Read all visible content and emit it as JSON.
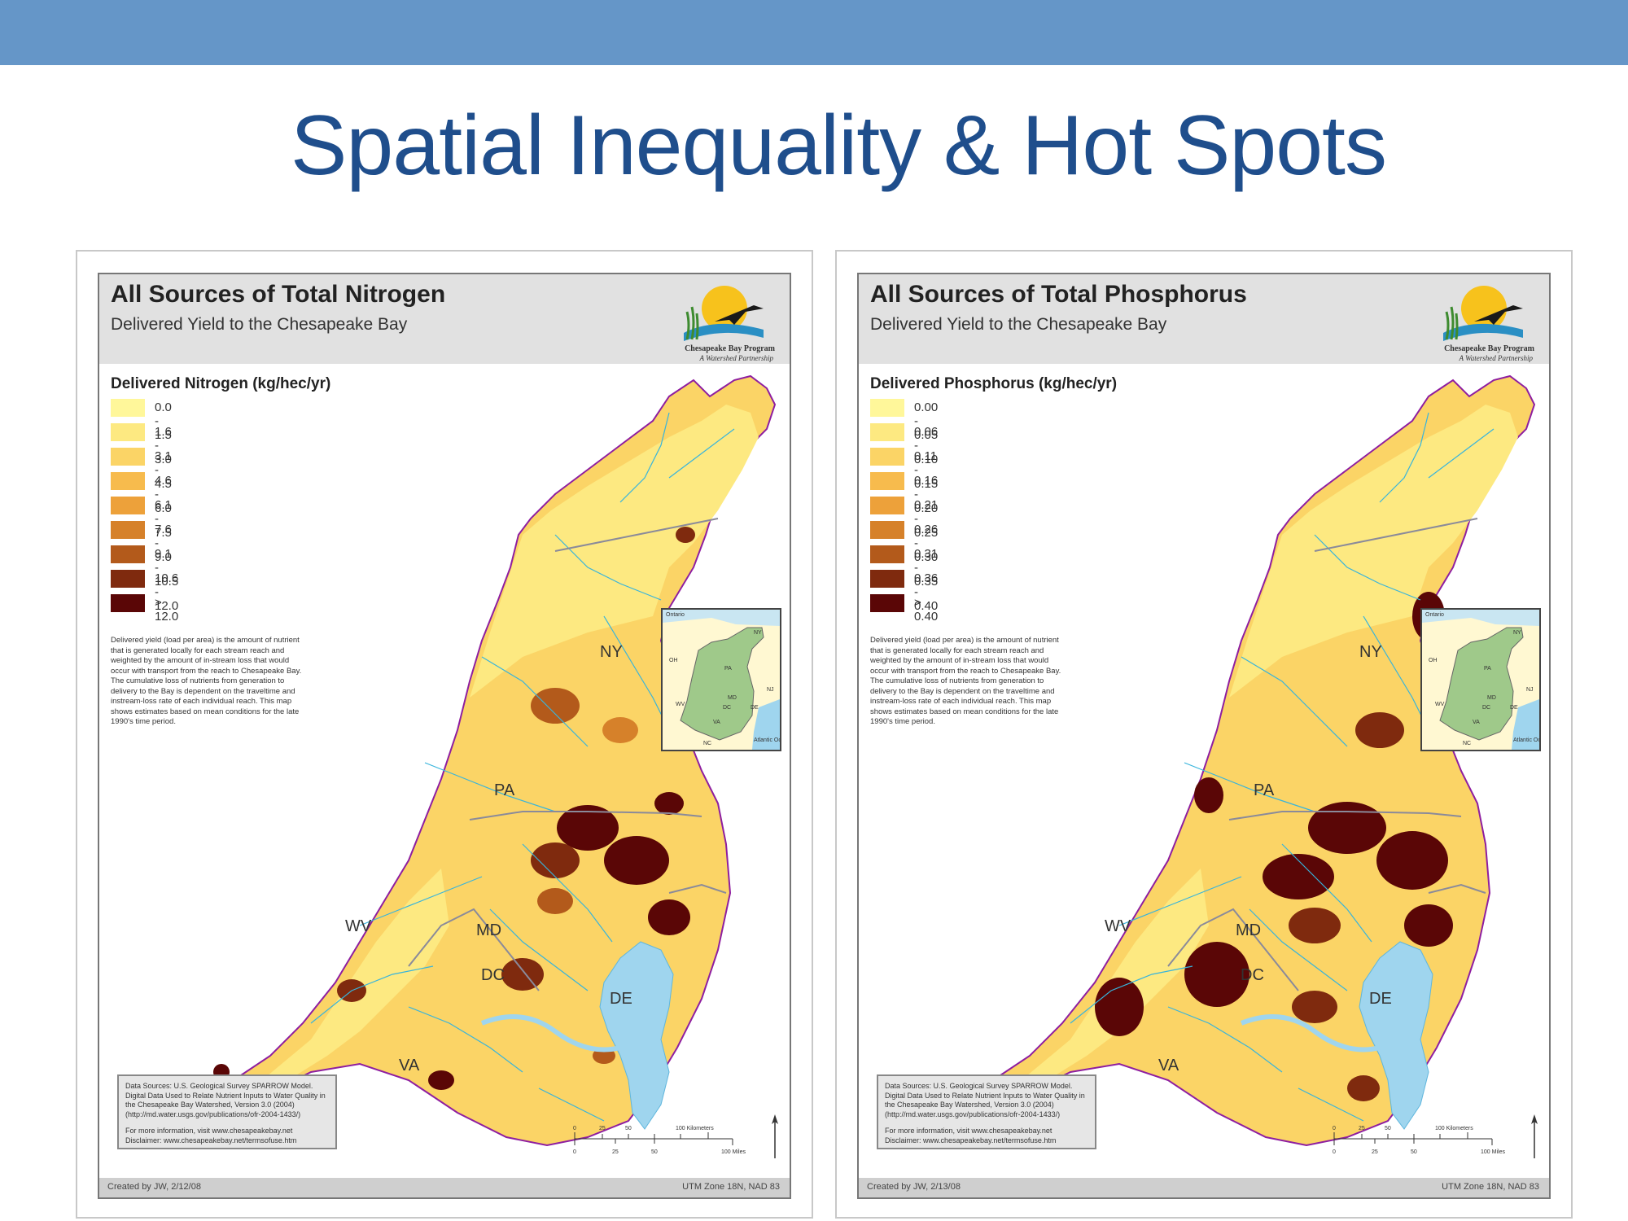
{
  "slide": {
    "title": "Spatial Inequality & Hot Spots",
    "accent_color": "#6596c8",
    "title_color": "#1f4e8c"
  },
  "maps": [
    {
      "title": "All Sources of Total Nitrogen",
      "subtitle": "Delivered Yield to the Chesapeake Bay",
      "logo": {
        "name": "Chesapeake Bay Program",
        "tagline": "A Watershed Partnership"
      },
      "legend_title": "Delivered Nitrogen (kg/hec/yr)",
      "legend": [
        {
          "label": "0.0 - 1.5",
          "color": "#fff79a"
        },
        {
          "label": "1.6 - 3.0",
          "color": "#fde981"
        },
        {
          "label": "3.1 - 4.5",
          "color": "#fbd466"
        },
        {
          "label": "4.6 - 6.0",
          "color": "#f7bb4d"
        },
        {
          "label": "6.1 - 7.5",
          "color": "#eda13a"
        },
        {
          "label": "7.6 - 9.0",
          "color": "#d6812a"
        },
        {
          "label": "9.1 - 10.5",
          "color": "#b35a1b"
        },
        {
          "label": "10.6 - 12.0",
          "color": "#7f2a0e"
        },
        {
          "label": "> 12.0",
          "color": "#5a0606"
        }
      ],
      "description": "Delivered yield (load per area) is the amount of nutrient that is generated locally for each stream reach and weighted by the amount of in-stream loss that would occur with transport from the reach to Chesapeake Bay. The cumulative loss of nutrients from generation to delivery to the Bay is dependent on the traveltime and instream-loss rate of each individual reach. This map shows estimates based on mean conditions for the late 1990's time period.",
      "sources": "Data Sources: U.S. Geological Survey SPARROW Model. Digital Data Used to Relate Nutrient Inputs to Water Quality in the Chesapeake Bay Watershed, Version 3.0 (2004) (http://md.water.usgs.gov/publications/ofr-2004-1433/)",
      "more_info": "For more information, visit www.chesapeakebay.net Disclaimer: www.chesapeakebay.net/termsofuse.htm",
      "created": "Created by JW, 2/12/08",
      "projection": "UTM Zone 18N, NAD 83",
      "states": [
        "NY",
        "PA",
        "MD",
        "WV",
        "DC",
        "DE",
        "VA"
      ],
      "scale": {
        "km_ticks": [
          "0",
          "25",
          "50",
          "100 Kilometers"
        ],
        "mi_ticks": [
          "0",
          "25",
          "50",
          "100 Miles"
        ]
      },
      "inset_labels": [
        "Ontario",
        "NY",
        "PA",
        "OH",
        "NJ",
        "MD",
        "DC",
        "WV",
        "DE",
        "VA",
        "NC",
        "Atlantic Ocean"
      ]
    },
    {
      "title": "All Sources of Total Phosphorus",
      "subtitle": "Delivered Yield to the Chesapeake Bay",
      "logo": {
        "name": "Chesapeake Bay Program",
        "tagline": "A Watershed Partnership"
      },
      "legend_title": "Delivered Phosphorus (kg/hec/yr)",
      "legend": [
        {
          "label": "0.00 - 0.05",
          "color": "#fff79a"
        },
        {
          "label": "0.06 - 0.10",
          "color": "#fde981"
        },
        {
          "label": "0.11 - 0.15",
          "color": "#fbd466"
        },
        {
          "label": "0.16 - 0.20",
          "color": "#f7bb4d"
        },
        {
          "label": "0.21 - 0.25",
          "color": "#eda13a"
        },
        {
          "label": "0.26 - 0.30",
          "color": "#d6812a"
        },
        {
          "label": "0.31 - 0.35",
          "color": "#b35a1b"
        },
        {
          "label": "0.36 - 0.40",
          "color": "#7f2a0e"
        },
        {
          "label": "> 0.40",
          "color": "#5a0606"
        }
      ],
      "description": "Delivered yield (load per area) is the amount of nutrient that is generated locally for each stream reach and weighted by the amount of in-stream loss that would occur with transport from the reach to Chesapeake Bay. The cumulative loss of nutrients from generation to delivery to the Bay is dependent on the traveltime and instream-loss rate of each individual reach. This map shows estimates based on mean conditions for the late 1990's time period.",
      "sources": "Data Sources: U.S. Geological Survey SPARROW Model. Digital Data Used to Relate Nutrient Inputs to Water Quality in the Chesapeake Bay Watershed, Version 3.0 (2004) (http://md.water.usgs.gov/publications/ofr-2004-1433/)",
      "more_info": "For more information, visit www.chesapeakebay.net Disclaimer: www.chesapeakebay.net/termsofuse.htm",
      "created": "Created by JW, 2/13/08",
      "projection": "UTM Zone 18N, NAD 83",
      "states": [
        "NY",
        "PA",
        "MD",
        "WV",
        "DC",
        "DE",
        "VA"
      ],
      "scale": {
        "km_ticks": [
          "0",
          "25",
          "50",
          "100 Kilometers"
        ],
        "mi_ticks": [
          "0",
          "25",
          "50",
          "100 Miles"
        ]
      },
      "inset_labels": [
        "Ontario",
        "NY",
        "PA",
        "OH",
        "NJ",
        "MD",
        "DC",
        "WV",
        "DE",
        "VA",
        "NC",
        "Atlantic Ocean"
      ]
    }
  ]
}
